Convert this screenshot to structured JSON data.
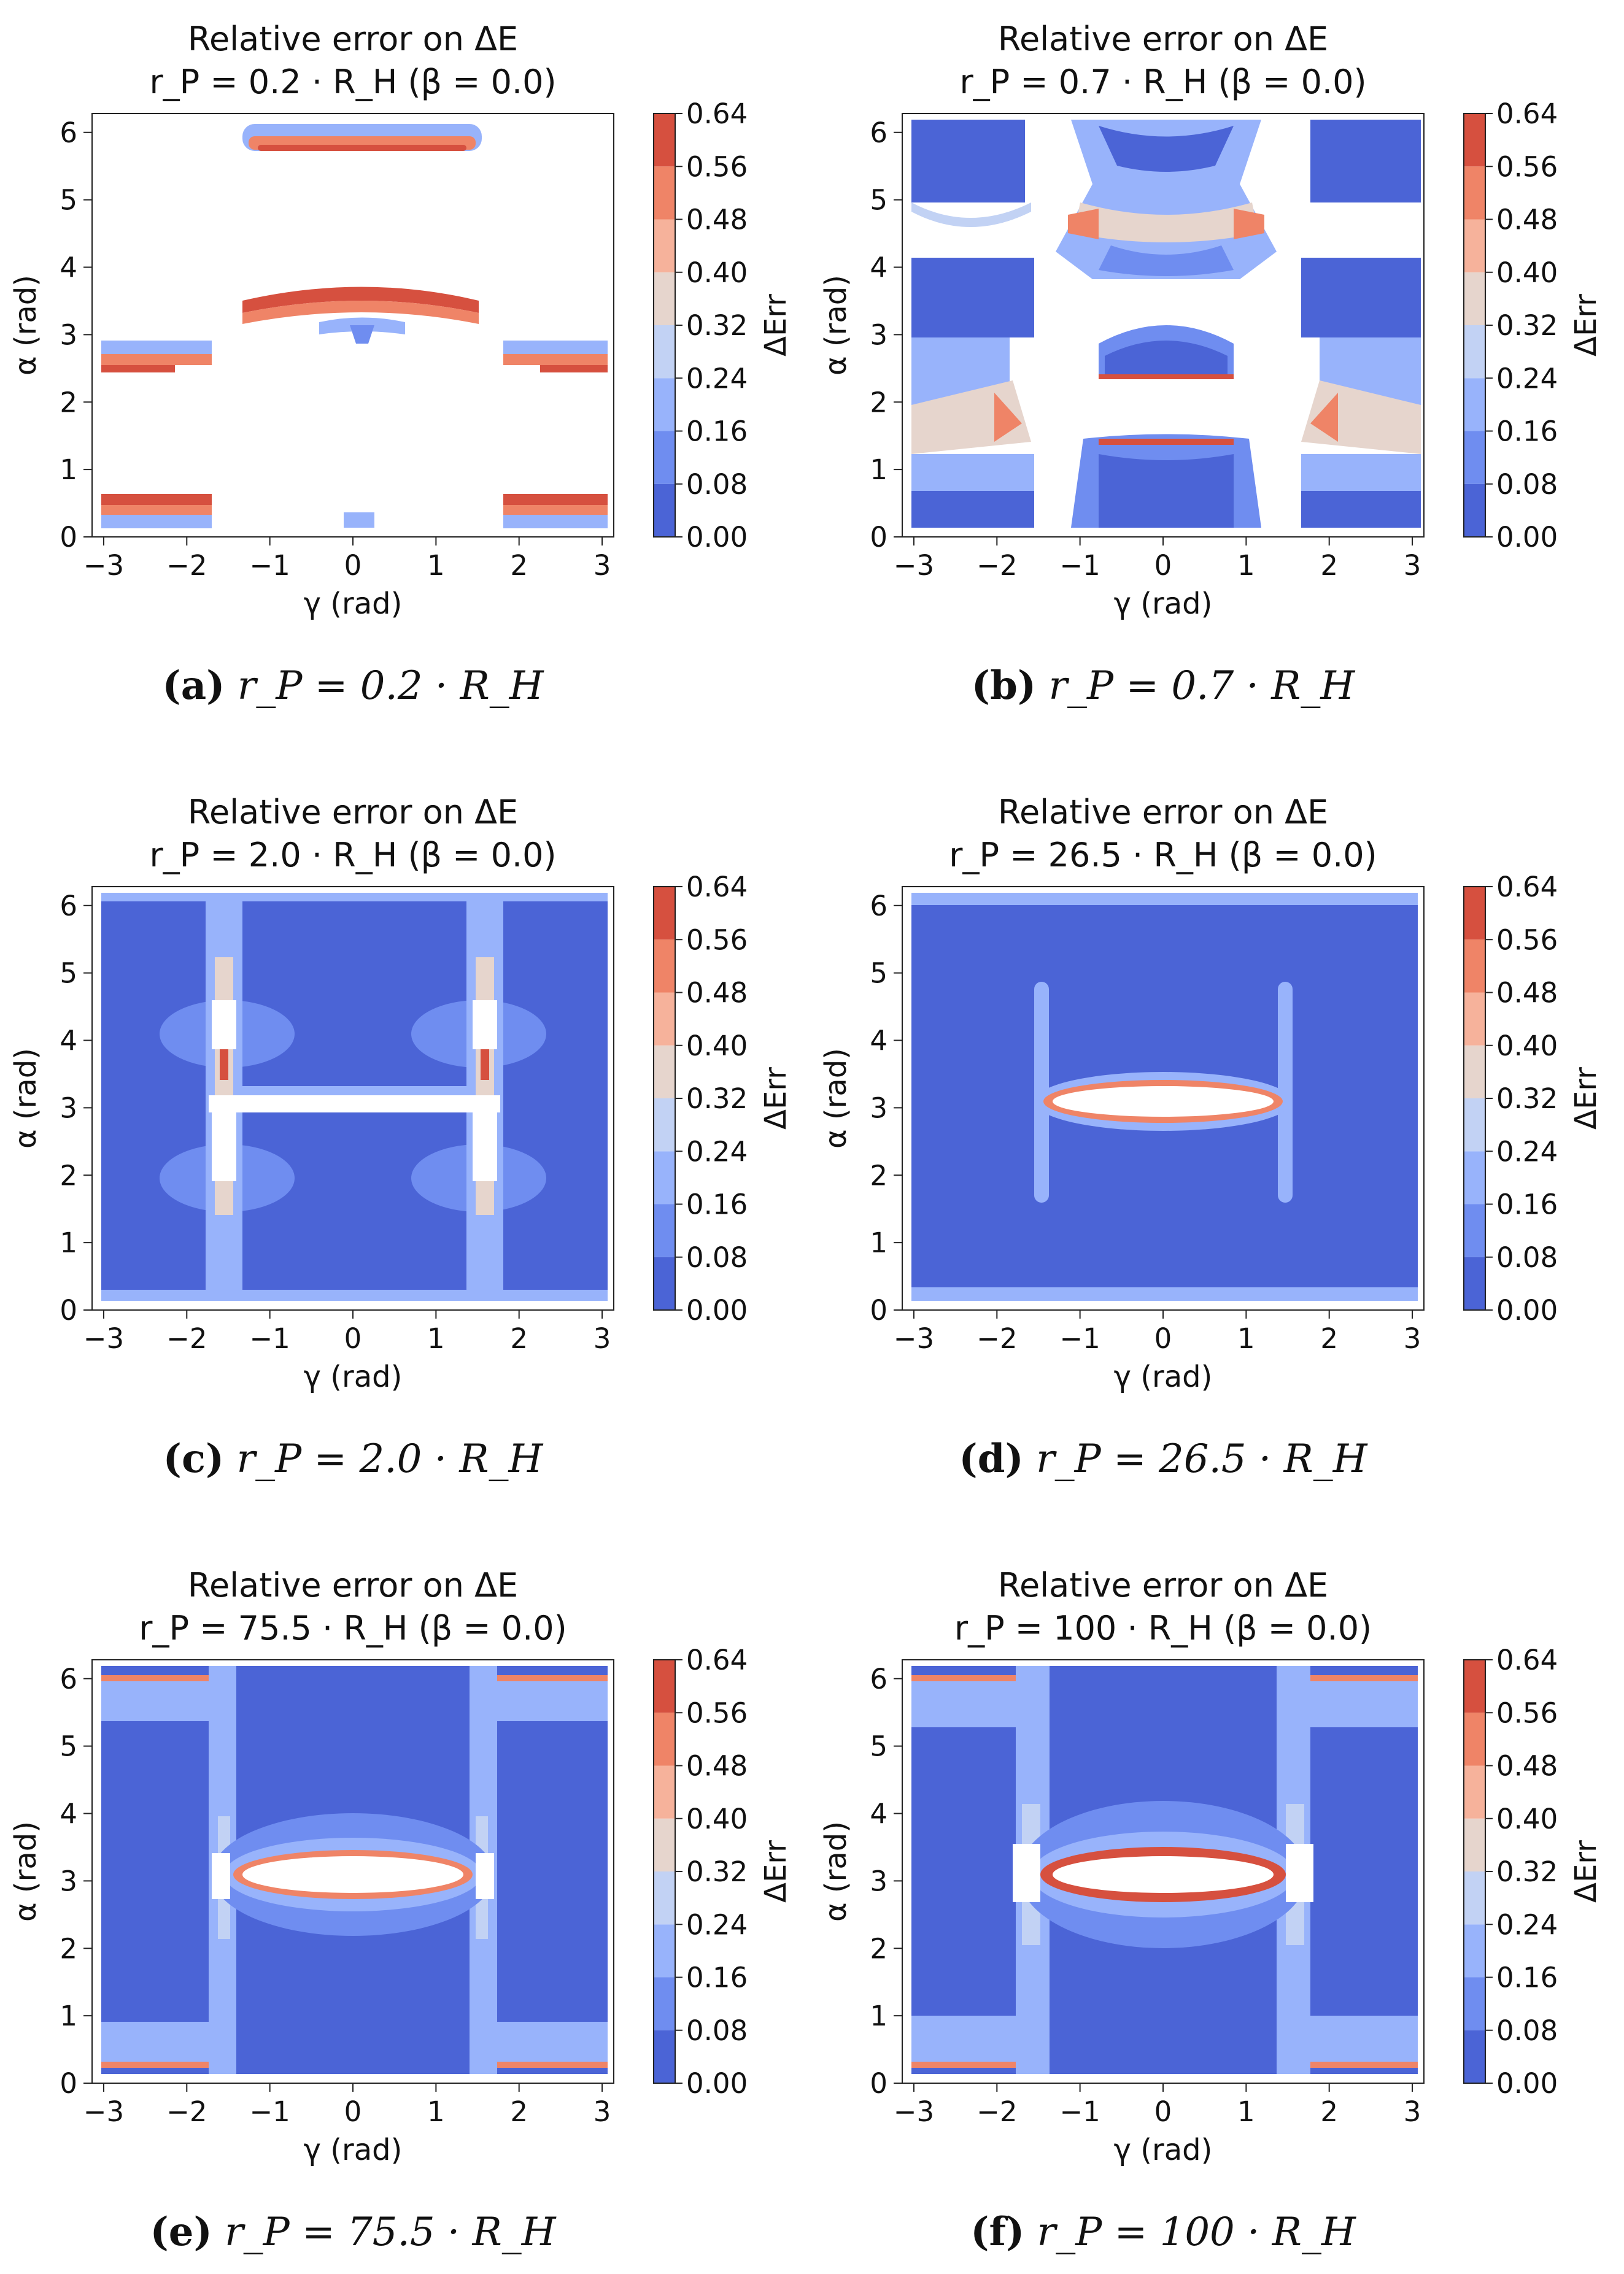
{
  "colors": {
    "levels": [
      "#4b64d6",
      "#6f8df0",
      "#98b3fb",
      "#c2d2f4",
      "#e6d5cd",
      "#f6b29b",
      "#ef8467",
      "#d6503f"
    ],
    "background": "#ffffff"
  },
  "common": {
    "title_line1": "Relative error on ΔE",
    "xlabel": "γ (rad)",
    "ylabel": "α (rad)",
    "colorbar_label": "ΔErr",
    "colorbar_ticks": [
      "0.64",
      "0.56",
      "0.48",
      "0.40",
      "0.32",
      "0.24",
      "0.16",
      "0.08",
      "0.00"
    ]
  },
  "panels": [
    {
      "title_line2": "r_P = 0.2 · R_H (β = 0.0)",
      "caption_letter": "(a)",
      "caption_eq": "r_P = 0.2 · R_H"
    },
    {
      "title_line2": "r_P = 0.7 · R_H (β = 0.0)",
      "caption_letter": "(b)",
      "caption_eq": "r_P = 0.7 · R_H"
    },
    {
      "title_line2": "r_P = 2.0 · R_H (β = 0.0)",
      "caption_letter": "(c)",
      "caption_eq": "r_P = 2.0 · R_H"
    },
    {
      "title_line2": "r_P = 26.5 · R_H (β = 0.0)",
      "caption_letter": "(d)",
      "caption_eq": "r_P = 26.5 · R_H"
    },
    {
      "title_line2": "r_P = 75.5 · R_H (β = 0.0)",
      "caption_letter": "(e)",
      "caption_eq": "r_P = 75.5 · R_H"
    },
    {
      "title_line2": "r_P = 100 · R_H (β = 0.0)",
      "caption_letter": "(f)",
      "caption_eq": "r_P = 100 · R_H"
    }
  ],
  "chart_data": [
    {
      "type": "heatmap",
      "title": "Relative error on ΔE — r_P = 0.2 · R_H (β = 0.0)",
      "xlabel": "γ (rad)",
      "ylabel": "α (rad)",
      "xlim": [
        -3.14,
        3.14
      ],
      "ylim": [
        0,
        6.28
      ],
      "x_ticks": [
        "−3",
        "−2",
        "−1",
        "0",
        "1",
        "2",
        "3"
      ],
      "y_ticks": [
        "0",
        "1",
        "2",
        "3",
        "4",
        "5",
        "6"
      ],
      "colorbar_label": "ΔErr",
      "levels": [
        0,
        0.08,
        0.16,
        0.24,
        0.32,
        0.4,
        0.48,
        0.56,
        0.64
      ],
      "note": "mostly undefined (white); error bands near α≈0.3, 2.7–3.0, 3.4–3.7, 5.8–6.1"
    },
    {
      "type": "heatmap",
      "title": "Relative error on ΔE — r_P = 0.7 · R_H (β = 0.0)",
      "xlabel": "γ (rad)",
      "ylabel": "α (rad)",
      "xlim": [
        -3.14,
        3.14
      ],
      "ylim": [
        0,
        6.28
      ],
      "x_ticks": [
        "−3",
        "−2",
        "−1",
        "0",
        "1",
        "2",
        "3"
      ],
      "y_ticks": [
        "0",
        "1",
        "2",
        "3",
        "4",
        "5",
        "6"
      ],
      "colorbar_label": "ΔErr",
      "levels": [
        0,
        0.08,
        0.16,
        0.24,
        0.32,
        0.4,
        0.48,
        0.56,
        0.64
      ]
    },
    {
      "type": "heatmap",
      "title": "Relative error on ΔE — r_P = 2.0 · R_H (β = 0.0)",
      "xlabel": "γ (rad)",
      "ylabel": "α (rad)",
      "xlim": [
        -3.14,
        3.14
      ],
      "ylim": [
        0,
        6.28
      ],
      "x_ticks": [
        "−3",
        "−2",
        "−1",
        "0",
        "1",
        "2",
        "3"
      ],
      "y_ticks": [
        "0",
        "1",
        "2",
        "3",
        "4",
        "5",
        "6"
      ],
      "colorbar_label": "ΔErr",
      "levels": [
        0,
        0.08,
        0.16,
        0.24,
        0.32,
        0.4,
        0.48,
        0.56,
        0.64
      ]
    },
    {
      "type": "heatmap",
      "title": "Relative error on ΔE — r_P = 26.5 · R_H (β = 0.0)",
      "xlabel": "γ (rad)",
      "ylabel": "α (rad)",
      "xlim": [
        -3.14,
        3.14
      ],
      "ylim": [
        0,
        6.28
      ],
      "x_ticks": [
        "−3",
        "−2",
        "−1",
        "0",
        "1",
        "2",
        "3"
      ],
      "y_ticks": [
        "0",
        "1",
        "2",
        "3",
        "4",
        "5",
        "6"
      ],
      "colorbar_label": "ΔErr",
      "levels": [
        0,
        0.08,
        0.16,
        0.24,
        0.32,
        0.4,
        0.48,
        0.56,
        0.64
      ]
    },
    {
      "type": "heatmap",
      "title": "Relative error on ΔE — r_P = 75.5 · R_H (β = 0.0)",
      "xlabel": "γ (rad)",
      "ylabel": "α (rad)",
      "xlim": [
        -3.14,
        3.14
      ],
      "ylim": [
        0,
        6.28
      ],
      "x_ticks": [
        "−3",
        "−2",
        "−1",
        "0",
        "1",
        "2",
        "3"
      ],
      "y_ticks": [
        "0",
        "1",
        "2",
        "3",
        "4",
        "5",
        "6"
      ],
      "colorbar_label": "ΔErr",
      "levels": [
        0,
        0.08,
        0.16,
        0.24,
        0.32,
        0.4,
        0.48,
        0.56,
        0.64
      ]
    },
    {
      "type": "heatmap",
      "title": "Relative error on ΔE — r_P = 100 · R_H (β = 0.0)",
      "xlabel": "γ (rad)",
      "ylabel": "α (rad)",
      "xlim": [
        -3.14,
        3.14
      ],
      "ylim": [
        0,
        6.28
      ],
      "x_ticks": [
        "−3",
        "−2",
        "−1",
        "0",
        "1",
        "2",
        "3"
      ],
      "y_ticks": [
        "0",
        "1",
        "2",
        "3",
        "4",
        "5",
        "6"
      ],
      "colorbar_label": "ΔErr",
      "levels": [
        0,
        0.08,
        0.16,
        0.24,
        0.32,
        0.4,
        0.48,
        0.56,
        0.64
      ]
    }
  ]
}
